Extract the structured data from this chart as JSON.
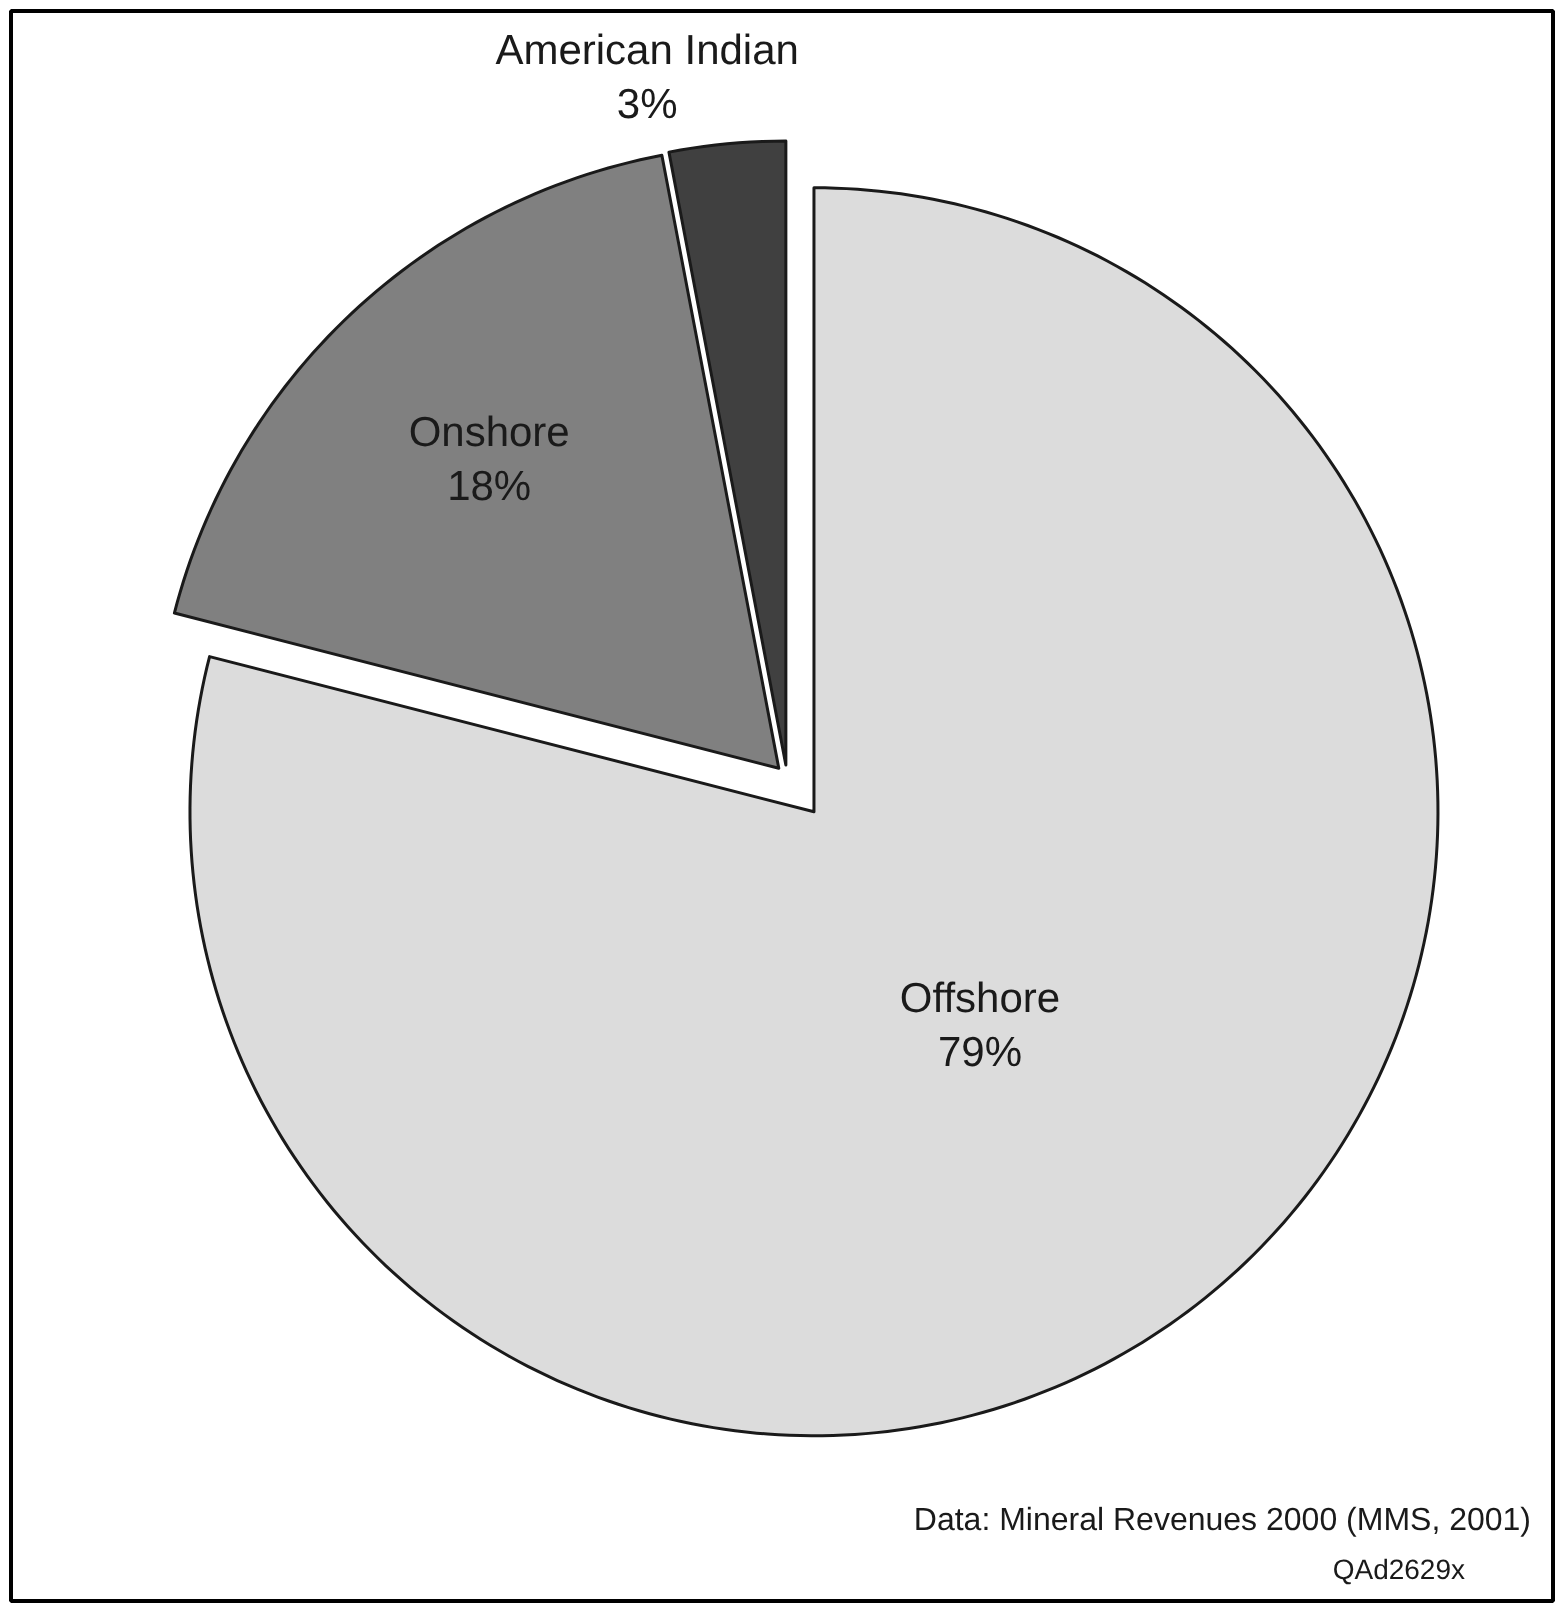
{
  "chart_data": {
    "type": "pie",
    "categories": [
      "Offshore",
      "Onshore",
      "American Indian"
    ],
    "values": [
      79,
      18,
      3
    ],
    "value_labels": [
      "79%",
      "18%",
      "3%"
    ],
    "colors": [
      "#dcdcdc",
      "#808080",
      "#404040"
    ],
    "annotations": [
      "Data: Mineral Revenues 2000 (MMS, 2001)",
      "QAd2629x"
    ]
  }
}
